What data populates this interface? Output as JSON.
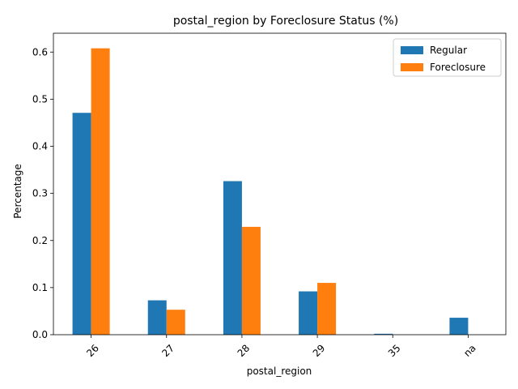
{
  "chart_data": {
    "type": "bar",
    "title": "postal_region by Foreclosure Status (%)",
    "xlabel": "postal_region",
    "ylabel": "Percentage",
    "categories": [
      "26",
      "27",
      "28",
      "29",
      "35",
      "na"
    ],
    "series": [
      {
        "name": "Regular",
        "color": "#1f77b4",
        "values": [
          0.471,
          0.073,
          0.326,
          0.092,
          0.002,
          0.036
        ]
      },
      {
        "name": "Foreclosure",
        "color": "#ff7f0e",
        "values": [
          0.608,
          0.053,
          0.229,
          0.11,
          0.0,
          0.0
        ]
      }
    ],
    "ylim": [
      0,
      0.64
    ],
    "yticks": [
      "0.0",
      "0.1",
      "0.2",
      "0.3",
      "0.4",
      "0.5",
      "0.6"
    ],
    "legend_position": "top-right",
    "grid": false
  }
}
